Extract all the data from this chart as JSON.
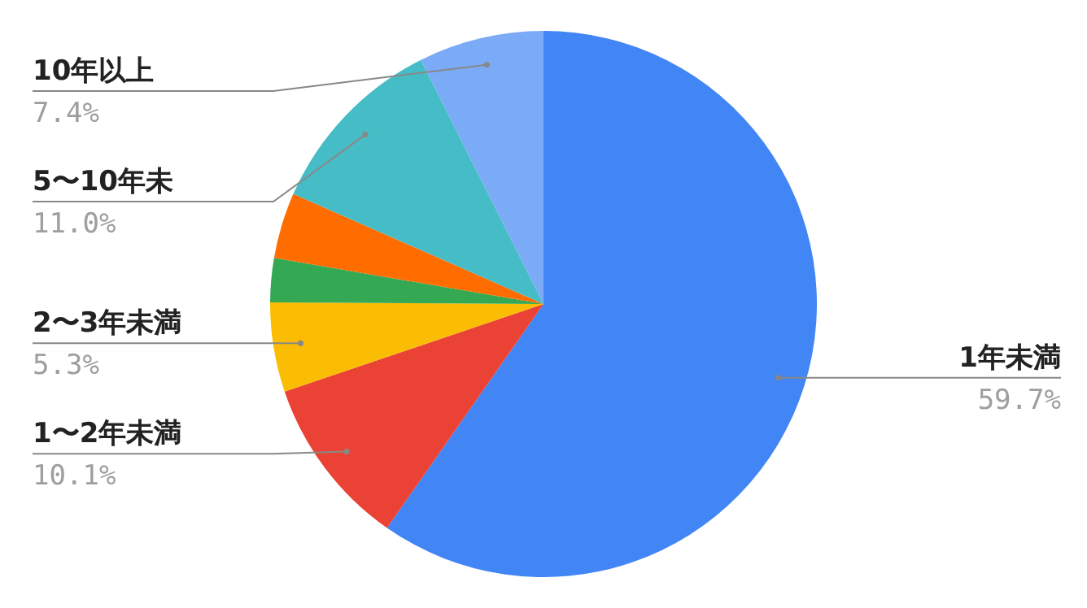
{
  "chart_data": {
    "type": "pie",
    "categories": [
      "1年未満",
      "1〜2年未満",
      "2〜3年未満",
      null,
      null,
      "5〜10年未",
      "10年以上"
    ],
    "values": [
      59.7,
      10.1,
      5.3,
      2.6,
      3.9,
      11.0,
      7.4
    ],
    "value_labels": [
      "59.7%",
      "10.1%",
      "5.3%",
      null,
      null,
      "11.0%",
      "7.4%"
    ],
    "colors": [
      "#4285f4",
      "#ea4335",
      "#fbbc04",
      "#34a853",
      "#ff6d01",
      "#46bdc6",
      "#7baaf7"
    ],
    "legend": false
  }
}
